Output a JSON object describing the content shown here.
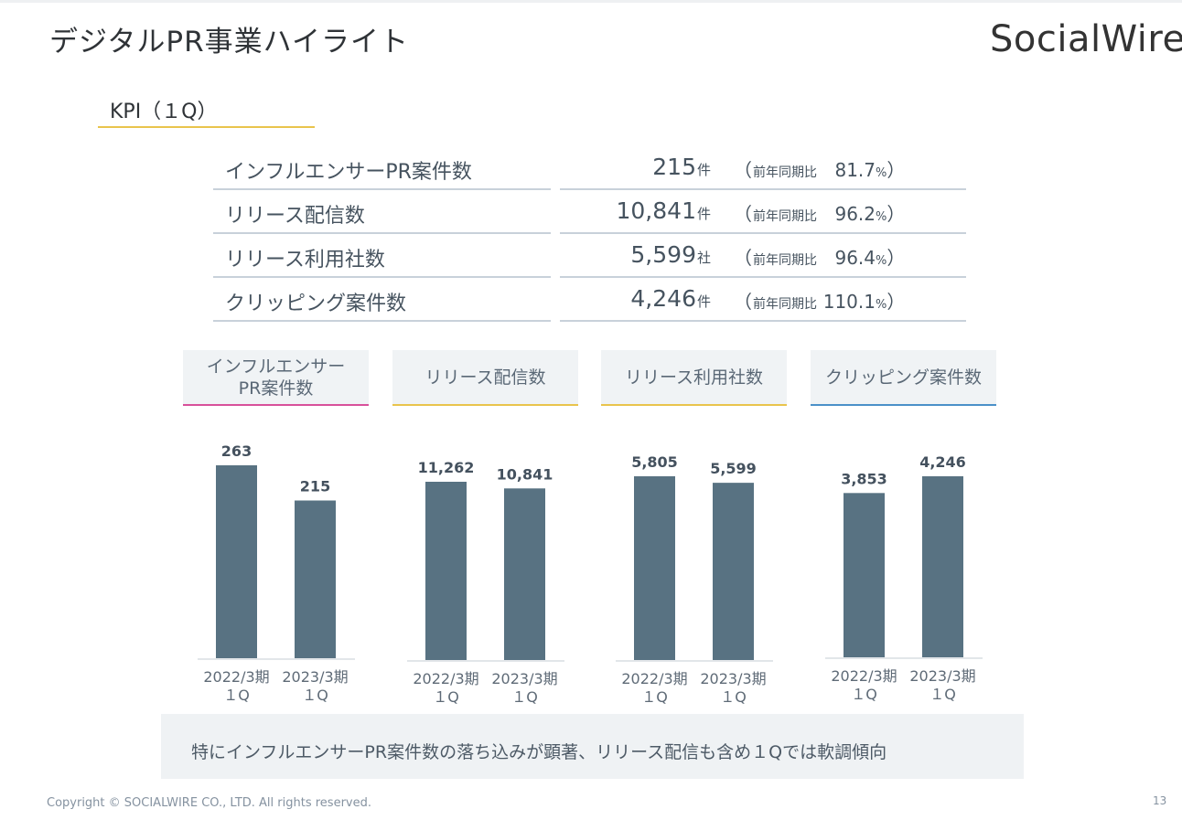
{
  "page": {
    "title": "デジタルPR事業ハイライト",
    "logo": "SocialWire",
    "subtitle": "KPI（１Q）",
    "copyright": "Copyright © SOCIALWIRE CO., LTD. All rights reserved.",
    "page_number": "13",
    "note": "特にインフルエンサーPR案件数の落ち込みが顕著、リリース配信も含め１Qでは軟調傾向"
  },
  "kpi_table": {
    "compare_label": "前年同期比",
    "percent_unit": "%",
    "rows": [
      {
        "label": "インフルエンサーPR案件数",
        "value": "215",
        "unit": "件",
        "yoy": "81.7"
      },
      {
        "label": "リリース配信数",
        "value": "10,841",
        "unit": "件",
        "yoy": "96.2"
      },
      {
        "label": "リリース利用社数",
        "value": "5,599",
        "unit": "社",
        "yoy": "96.4"
      },
      {
        "label": "クリッピング案件数",
        "value": "4,246",
        "unit": "件",
        "yoy": "110.1"
      }
    ]
  },
  "chart_headers": [
    "インフルエンサー\nPR案件数",
    "リリース配信数",
    "リリース利用社数",
    "クリッピング案件数"
  ],
  "colors": {
    "bar": "#587282",
    "header_underlines": [
      "#d8509a",
      "#e9c44c",
      "#e9c44c",
      "#4a90c8"
    ],
    "subtitle_underline": "#e9c44c",
    "axis": "#d9dde2"
  },
  "chart_data": [
    {
      "type": "bar",
      "title": "インフルエンサー\nPR案件数",
      "categories": [
        "2022/3期\n１Q",
        "2023/3期\n１Q"
      ],
      "values": [
        263,
        215
      ],
      "labels": [
        "263",
        "215"
      ]
    },
    {
      "type": "bar",
      "title": "リリース配信数",
      "categories": [
        "2022/3期\n１Q",
        "2023/3期\n１Q"
      ],
      "values": [
        11262,
        10841
      ],
      "labels": [
        "11,262",
        "10,841"
      ]
    },
    {
      "type": "bar",
      "title": "リリース利用社数",
      "categories": [
        "2022/3期\n１Q",
        "2023/3期\n１Q"
      ],
      "values": [
        5805,
        5599
      ],
      "labels": [
        "5,805",
        "5,599"
      ]
    },
    {
      "type": "bar",
      "title": "クリッピング案件数",
      "categories": [
        "2022/3期\n１Q",
        "2023/3期\n１Q"
      ],
      "values": [
        3853,
        4246
      ],
      "labels": [
        "3,853",
        "4,246"
      ]
    }
  ]
}
